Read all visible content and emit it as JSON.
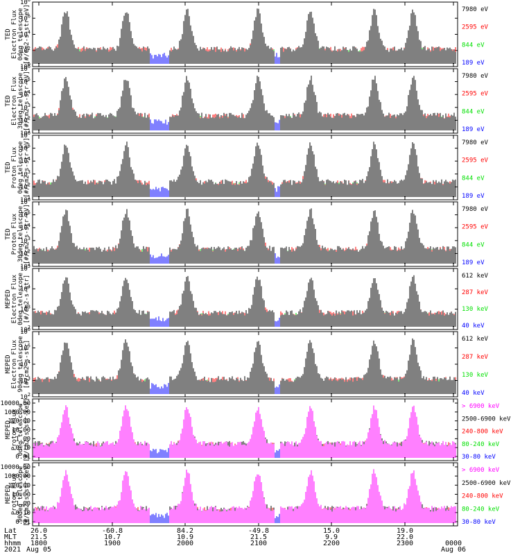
{
  "chart_data": [
    {
      "type": "line",
      "ylabel": [
        "TED",
        "Electron Flux",
        "0deg telescope",
        "[#/cm2-s-str-eV]"
      ],
      "yscale": "log",
      "ylim": [
        1,
        100000000
      ],
      "ytick_labels": [
        "10^0",
        "10^2",
        "10^4",
        "10^6",
        "10^8"
      ],
      "series": [
        {
          "name": "7980 eV",
          "color": "#000000"
        },
        {
          "name": "2595 eV",
          "color": "#ff0000"
        },
        {
          "name": "844 eV",
          "color": "#00e000"
        },
        {
          "name": "189 eV",
          "color": "#0000ff"
        }
      ]
    },
    {
      "type": "line",
      "ylabel": [
        "TED",
        "Electron Flux",
        "30deg telescope",
        "[#/cm2-s-str-eV]"
      ],
      "yscale": "log",
      "ylim": [
        1,
        100000000
      ],
      "ytick_labels": [
        "10^1",
        "10^2",
        "10^3",
        "10^4",
        "10^5",
        "10^6"
      ],
      "series": [
        {
          "name": "7980 eV",
          "color": "#000000"
        },
        {
          "name": "2595 eV",
          "color": "#ff0000"
        },
        {
          "name": "844 eV",
          "color": "#00e000"
        },
        {
          "name": "189 eV",
          "color": "#0000ff"
        }
      ]
    },
    {
      "type": "line",
      "ylabel": [
        "TED",
        "Proton Flux",
        "0deg telescope",
        "[#/cm2-s-str-eV]"
      ],
      "yscale": "log",
      "ylim": [
        1,
        100000000
      ],
      "ytick_labels": [
        "10^1",
        "10^2",
        "10^3",
        "10^4",
        "10^5",
        "10^6"
      ],
      "series": [
        {
          "name": "7980 eV",
          "color": "#000000"
        },
        {
          "name": "2595 eV",
          "color": "#ff0000"
        },
        {
          "name": "844 eV",
          "color": "#00e000"
        },
        {
          "name": "189 eV",
          "color": "#0000ff"
        }
      ]
    },
    {
      "type": "line",
      "ylabel": [
        "TED",
        "Proton Flux",
        "30deg telescope",
        "[#/cm2-s-str-eV]"
      ],
      "yscale": "log",
      "ylim": [
        1,
        100000000
      ],
      "ytick_labels": [
        "10^1",
        "10^2",
        "10^3",
        "10^4",
        "10^5",
        "10^6"
      ],
      "series": [
        {
          "name": "7980 eV",
          "color": "#000000"
        },
        {
          "name": "2595 eV",
          "color": "#ff0000"
        },
        {
          "name": "844 eV",
          "color": "#00e000"
        },
        {
          "name": "189 eV",
          "color": "#0000ff"
        }
      ]
    },
    {
      "type": "line",
      "ylabel": [
        "MEPED",
        "Electron Flux",
        "0deg telescope",
        "[#/cm2-s-str]"
      ],
      "yscale": "log",
      "ylim": [
        100,
        100000
      ],
      "ytick_labels": [
        "10^2",
        "10^3",
        "10^4",
        "10^5"
      ],
      "series": [
        {
          "name": "612 keV",
          "color": "#000000"
        },
        {
          "name": "287 keV",
          "color": "#ff0000"
        },
        {
          "name": "130 keV",
          "color": "#00e000"
        },
        {
          "name": "40 keV",
          "color": "#0000ff"
        }
      ]
    },
    {
      "type": "line",
      "ylabel": [
        "MEPED",
        "Electron Flux",
        "90deg telescope",
        "[#/cm2-s-str]"
      ],
      "yscale": "log",
      "ylim": [
        100,
        1000000
      ],
      "ytick_labels": [
        "10^2",
        "10^3",
        "10^4",
        "10^5",
        "10^6"
      ],
      "series": [
        {
          "name": "612 keV",
          "color": "#000000"
        },
        {
          "name": "287 keV",
          "color": "#ff0000"
        },
        {
          "name": "130 keV",
          "color": "#00e000"
        },
        {
          "name": "40 keV",
          "color": "#0000ff"
        }
      ]
    },
    {
      "type": "line",
      "ylabel": [
        "MEPED",
        "Proton Flux",
        "0deg telescope",
        "[#/cm2-s-str-keV]"
      ],
      "yscale": "log",
      "ylim": [
        0.01,
        10000
      ],
      "ytick_labels": [
        "10000.00",
        "1000.00",
        "100.00",
        "10.00",
        "1.00",
        "0.10",
        "0.01"
      ],
      "series": [
        {
          "name": "> 6900 keV",
          "color": "#ff00ff"
        },
        {
          "name": "2500-6900 keV",
          "color": "#000000"
        },
        {
          "name": "240-800 keV",
          "color": "#ff0000"
        },
        {
          "name": "80-240 keV",
          "color": "#00e000"
        },
        {
          "name": "30-80 keV",
          "color": "#0000ff"
        }
      ]
    },
    {
      "type": "line",
      "ylabel": [
        "MEPED",
        "Proton Flux",
        "90deg telescope",
        "[#/cm2-s-str-keV]"
      ],
      "yscale": "log",
      "ylim": [
        0.01,
        10000
      ],
      "ytick_labels": [
        "10000.00",
        "1000.00",
        "100.00",
        "10.00",
        "1.00",
        "0.10",
        "0.01"
      ],
      "series": [
        {
          "name": "> 6900 keV",
          "color": "#ff00ff"
        },
        {
          "name": "2500-6900 keV",
          "color": "#000000"
        },
        {
          "name": "240-800 keV",
          "color": "#ff0000"
        },
        {
          "name": "80-240 keV",
          "color": "#00e000"
        },
        {
          "name": "30-80 keV",
          "color": "#0000ff"
        }
      ]
    }
  ],
  "x_axis": {
    "row_labels": [
      "Lat",
      "MLT",
      "hhmm",
      "2021"
    ],
    "ticks": [
      {
        "lat": "26.0",
        "mlt": "21.5",
        "hhmm": "1800",
        "date": "Aug 05"
      },
      {
        "lat": "-60.8",
        "mlt": "10.7",
        "hhmm": "1900",
        "date": ""
      },
      {
        "lat": "84.2",
        "mlt": "10.9",
        "hhmm": "2000",
        "date": ""
      },
      {
        "lat": "-49.8",
        "mlt": "21.5",
        "hhmm": "2100",
        "date": ""
      },
      {
        "lat": "15.0",
        "mlt": "9.9",
        "hhmm": "2200",
        "date": ""
      },
      {
        "lat": "19.0",
        "mlt": "22.0",
        "hhmm": "2300",
        "date": ""
      },
      {
        "lat": "",
        "mlt": "",
        "hhmm": "0000",
        "date": "Aug 06"
      }
    ]
  }
}
